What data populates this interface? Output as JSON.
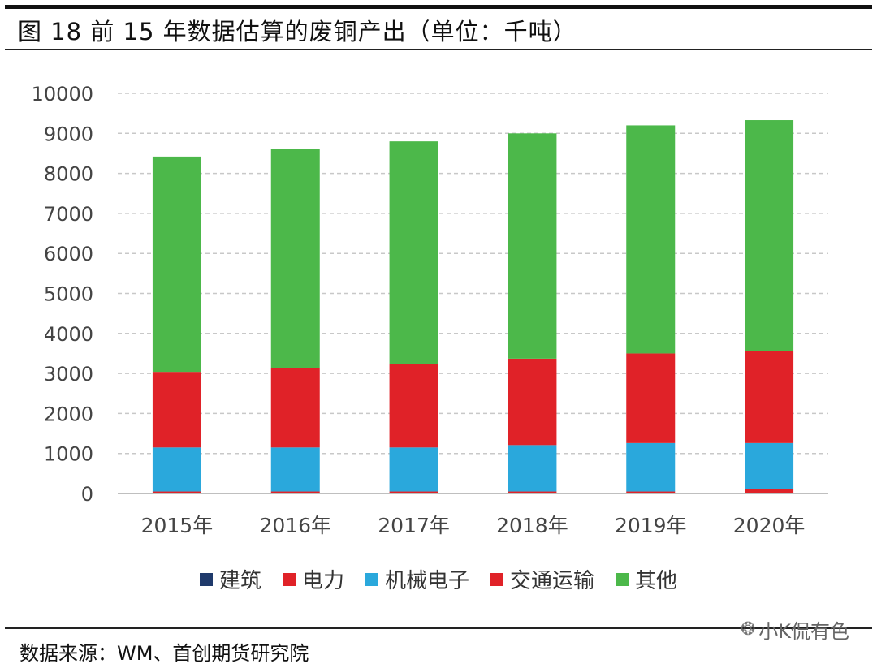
{
  "header": {
    "title": "图 18 前 15 年数据估算的废铜产出（单位：千吨）"
  },
  "footer": {
    "source": "数据来源：WM、首创期货研究院",
    "watermark": "小K侃有色"
  },
  "colors": {
    "建筑": "#1f3a6b",
    "电力": "#e02228",
    "机械电子": "#2aa8dc",
    "交通运输": "#e02228",
    "其他": "#4cb84a"
  },
  "chart_data": {
    "type": "bar",
    "stacked": true,
    "title": "",
    "xlabel": "",
    "ylabel": "",
    "ylim": [
      0,
      10000
    ],
    "yticks": [
      "0",
      "1000",
      "2000",
      "3000",
      "4000",
      "5000",
      "6000",
      "7000",
      "8000",
      "9000",
      "10000"
    ],
    "grid": true,
    "legend_position": "bottom",
    "categories": [
      "2015年",
      "2016年",
      "2017年",
      "2018年",
      "2019年",
      "2020年"
    ],
    "series": [
      {
        "name": "建筑",
        "values": [
          0,
          0,
          0,
          0,
          0,
          0
        ]
      },
      {
        "name": "电力",
        "values": [
          50,
          50,
          50,
          50,
          50,
          120
        ]
      },
      {
        "name": "机械电子",
        "values": [
          1100,
          1100,
          1100,
          1160,
          1210,
          1140
        ]
      },
      {
        "name": "交通运输",
        "values": [
          1890,
          1990,
          2090,
          2160,
          2240,
          2310
        ]
      },
      {
        "name": "其他",
        "values": [
          5380,
          5480,
          5560,
          5630,
          5700,
          5760
        ]
      }
    ]
  }
}
